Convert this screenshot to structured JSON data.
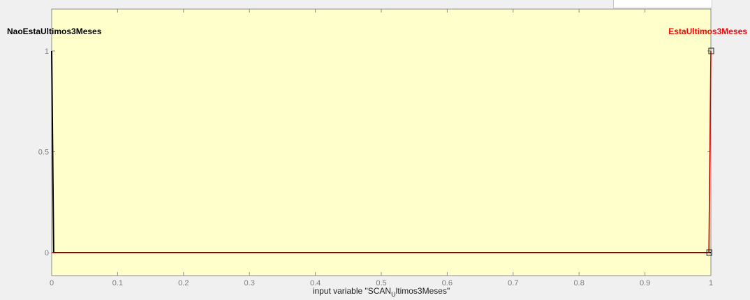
{
  "chart_data": {
    "type": "line",
    "title": "",
    "xlabel": "input variable \"SCAN_Ultimos3Meses\"",
    "xlabel_main": "input variable \"SCAN",
    "xlabel_sub": "U",
    "xlabel_rest": "ltimos3Meses\"",
    "ylabel": "",
    "xlim": [
      0,
      1
    ],
    "ylim": [
      0,
      1
    ],
    "x_ticks": [
      "0",
      "0.1",
      "0.2",
      "0.3",
      "0.4",
      "0.5",
      "0.6",
      "0.7",
      "0.8",
      "0.9",
      "1"
    ],
    "x_tick_values": [
      0,
      0.1,
      0.2,
      0.3,
      0.4,
      0.5,
      0.6,
      0.7,
      0.8,
      0.9,
      1
    ],
    "y_ticks": [
      "0",
      "0.5",
      "1"
    ],
    "y_tick_values": [
      0,
      0.5,
      1
    ],
    "grid": false,
    "background_color": "#ffffcc",
    "series": [
      {
        "name": "NaoEstaUltimos3Meses",
        "color": "#000000",
        "label_color": "#000000",
        "x": [
          0,
          0.003,
          1
        ],
        "y": [
          1,
          0,
          0
        ]
      },
      {
        "name": "EstaUltimos3Meses",
        "color": "#cc0000",
        "label_color": "#ff0000",
        "x": [
          0,
          0.997,
          1
        ],
        "y": [
          0,
          0,
          1
        ]
      }
    ]
  }
}
